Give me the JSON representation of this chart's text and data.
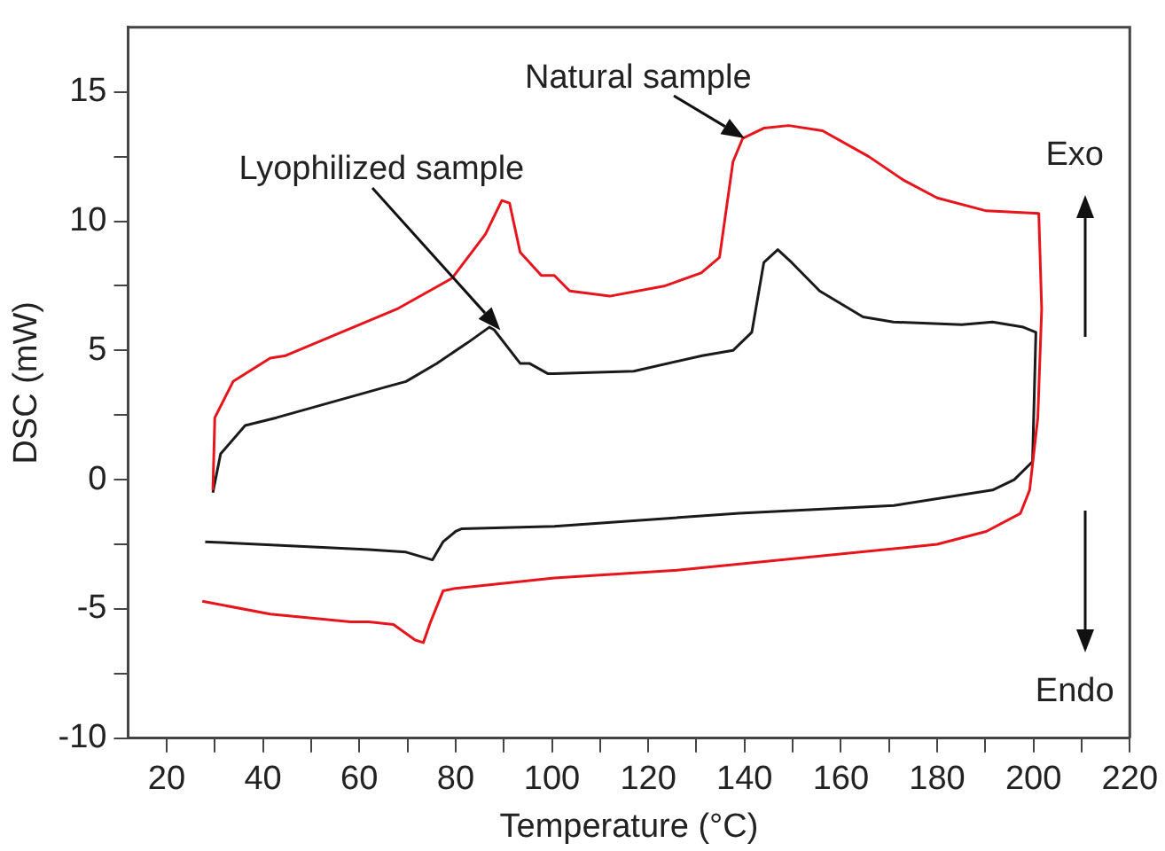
{
  "chart_data": {
    "type": "line",
    "xlabel": "Temperature (°C)",
    "ylabel": "DSC (mW)",
    "xlim": [
      12,
      220
    ],
    "xticks": [
      20,
      {
        "value": 30,
        "label": null
      },
      40,
      {
        "value": 50,
        "label": null
      },
      60,
      {
        "value": 70,
        "label": null
      },
      80,
      {
        "value": 90,
        "label": null
      },
      100,
      {
        "value": 110,
        "label": null
      },
      120,
      {
        "value": 130,
        "label": null
      },
      140,
      {
        "value": 150,
        "label": null
      },
      160,
      {
        "value": 170,
        "label": null
      },
      180,
      {
        "value": 190,
        "label": null
      },
      200,
      {
        "value": 210,
        "label": null
      },
      220
    ],
    "ylim": [
      -10,
      17.5
    ],
    "yticks": [
      -10,
      {
        "value": -7.5,
        "label": null
      },
      -5,
      {
        "value": -2.5,
        "label": null
      },
      0,
      {
        "value": 2.5,
        "label": null
      },
      5,
      {
        "value": 7.5,
        "label": null
      },
      10,
      {
        "value": 12.5,
        "label": null
      },
      15
    ],
    "grid": false,
    "legend": false,
    "marker": "none",
    "line_style": "solid",
    "annotations": [
      {
        "text": "Natural sample",
        "x": 140,
        "y": 13.2
      },
      "Lyophilized sample",
      "Exo",
      "Endo"
    ],
    "series": [
      {
        "color": "#e8141b",
        "x": [
          29.6,
          30,
          33.8,
          41.5,
          44.7,
          67.8,
          79.3,
          86.2,
          89.6,
          91.2,
          93.4,
          97.8,
          100.5,
          103.7,
          112,
          123.5,
          131,
          134.8,
          137.6,
          139.6,
          144,
          149.2,
          156.2,
          165.8,
          172.9,
          180,
          190.2,
          201.1,
          201.7,
          200.9,
          199.2,
          197.3,
          190.2,
          180,
          126,
          100.5,
          80,
          77.4,
          74.8,
          73.3,
          71.6,
          67.1,
          62,
          58.2,
          41.5,
          27.4
        ],
        "values": [
          -0.4,
          2.4,
          3.8,
          4.7,
          4.8,
          6.6,
          7.8,
          9.5,
          10.8,
          10.7,
          8.8,
          7.9,
          7.9,
          7.3,
          7.1,
          7.5,
          8.0,
          8.6,
          12.3,
          13.2,
          13.6,
          13.7,
          13.5,
          12.5,
          11.6,
          10.9,
          10.4,
          10.3,
          6.6,
          2.4,
          -0.4,
          -1.3,
          -2.0,
          -2.5,
          -3.5,
          -3.8,
          -4.2,
          -4.3,
          -5.5,
          -6.3,
          -6.2,
          -5.6,
          -5.5,
          -5.5,
          -5.2,
          -4.7
        ]
      },
      {
        "color": "#1a1a1a",
        "x": [
          29.6,
          31.2,
          36.3,
          42.8,
          65.8,
          69.7,
          76.1,
          82.5,
          87,
          88,
          93.4,
          95.3,
          99.2,
          100.5,
          117,
          131.2,
          137.6,
          141.5,
          144,
          146.9,
          149.8,
          155.6,
          164.6,
          170.9,
          185.1,
          191.5,
          197.9,
          200.5,
          199.8,
          196,
          191.5,
          171,
          138.9,
          100.5,
          81.2,
          80,
          77.4,
          75.2,
          69.7,
          62,
          28
        ],
        "values": [
          -0.5,
          1.0,
          2.1,
          2.4,
          3.6,
          3.8,
          4.5,
          5.3,
          5.9,
          5.8,
          4.5,
          4.5,
          4.1,
          4.1,
          4.2,
          4.8,
          5.0,
          5.7,
          8.4,
          8.9,
          8.4,
          7.3,
          6.3,
          6.1,
          6.0,
          6.1,
          5.9,
          5.7,
          0.7,
          0.0,
          -0.4,
          -1.0,
          -1.3,
          -1.8,
          -1.9,
          -2.0,
          -2.4,
          -3.1,
          -2.8,
          -2.7,
          -2.4
        ]
      }
    ]
  }
}
